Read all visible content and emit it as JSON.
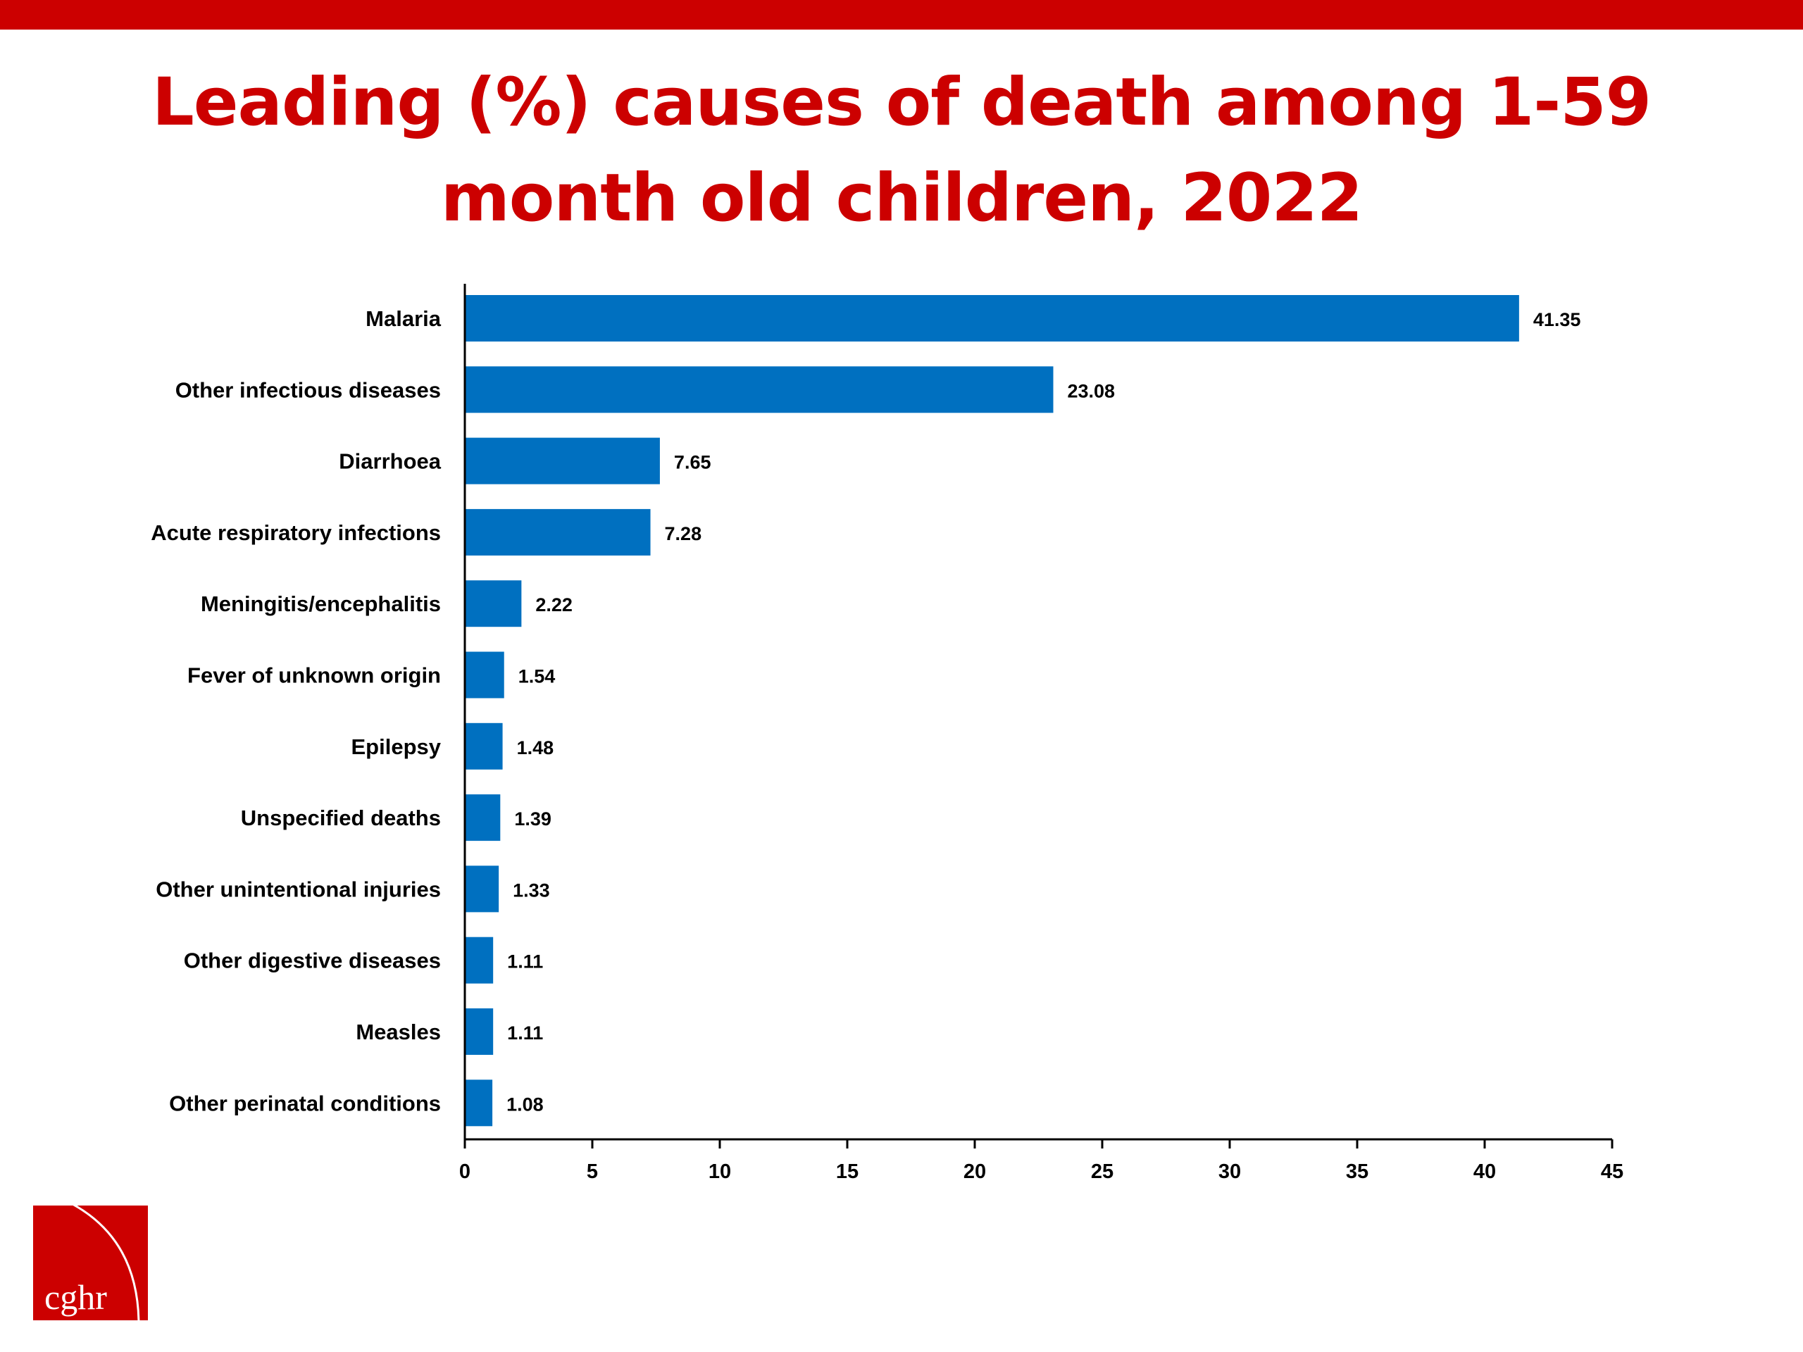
{
  "slide": {
    "title": "Leading (%) causes of death among 1-59 month old children, 2022",
    "accent_color": "#cc0000",
    "bar_color": "#0070c0",
    "logo_text": "cghr"
  },
  "chart_data": {
    "type": "bar",
    "orientation": "horizontal",
    "title": "Leading (%) causes of death among 1-59 month old children, 2022",
    "xlabel": "",
    "ylabel": "",
    "categories": [
      "Malaria",
      "Other infectious diseases",
      "Diarrhoea",
      "Acute respiratory infections",
      "Meningitis/encephalitis",
      "Fever of unknown origin",
      "Epilepsy",
      "Unspecified deaths",
      "Other unintentional injuries",
      "Other digestive diseases",
      "Measles",
      "Other perinatal conditions"
    ],
    "values": [
      41.35,
      23.08,
      7.65,
      7.28,
      2.22,
      1.54,
      1.48,
      1.39,
      1.33,
      1.11,
      1.11,
      1.08
    ],
    "value_labels": [
      "41.35",
      "23.08",
      "7.65",
      "7.28",
      "2.22",
      "1.54",
      "1.48",
      "1.39",
      "1.33",
      "1.11",
      "1.11",
      "1.08"
    ],
    "xlim": [
      0,
      45
    ],
    "xticks": [
      "0",
      "5",
      "10",
      "15",
      "20",
      "25",
      "30",
      "35",
      "40",
      "45"
    ],
    "grid": false,
    "legend": "none"
  }
}
